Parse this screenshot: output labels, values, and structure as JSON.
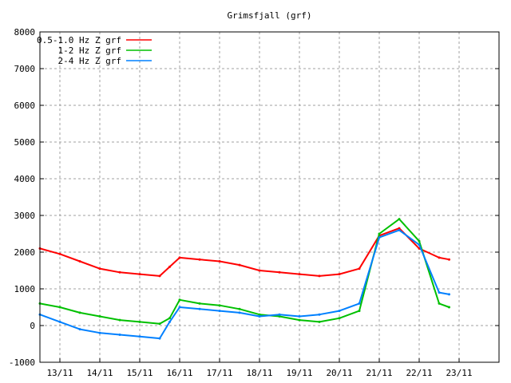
{
  "chart_data": {
    "type": "line",
    "title": "Grimsfjall (grf)",
    "xlabel": "",
    "ylabel": "",
    "ylim": [
      -1000,
      8000
    ],
    "yticks": [
      -1000,
      0,
      1000,
      2000,
      3000,
      4000,
      5000,
      6000,
      7000,
      8000
    ],
    "xlim": [
      "12/11 12:00",
      "24/11 00:00"
    ],
    "xticks": [
      "13/11",
      "14/11",
      "15/11",
      "16/11",
      "17/11",
      "18/11",
      "19/11",
      "20/11",
      "21/11",
      "22/11",
      "23/11"
    ],
    "grid": true,
    "legend_position": "top-left",
    "series": [
      {
        "name": "0.5-1.0 Hz Z grf",
        "color": "#ff0000",
        "x": [
          "12/11 12:00",
          "13/11 00:00",
          "13/11 12:00",
          "14/11 00:00",
          "14/11 12:00",
          "15/11 00:00",
          "15/11 12:00",
          "15/11 18:00",
          "16/11 00:00",
          "16/11 12:00",
          "17/11 00:00",
          "17/11 12:00",
          "18/11 00:00",
          "18/11 12:00",
          "19/11 00:00",
          "19/11 12:00",
          "20/11 00:00",
          "20/11 12:00",
          "21/11 00:00",
          "21/11 12:00",
          "22/11 00:00",
          "22/11 12:00",
          "22/11 18:00"
        ],
        "values": [
          2100,
          1950,
          1750,
          1550,
          1450,
          1400,
          1350,
          1600,
          1850,
          1800,
          1750,
          1650,
          1500,
          1450,
          1400,
          1350,
          1400,
          1550,
          2450,
          2650,
          2100,
          1850,
          1800
        ]
      },
      {
        "name": "1-2 Hz Z grf",
        "color": "#00c000",
        "x": [
          "12/11 12:00",
          "13/11 00:00",
          "13/11 12:00",
          "14/11 00:00",
          "14/11 12:00",
          "15/11 00:00",
          "15/11 12:00",
          "15/11 18:00",
          "16/11 00:00",
          "16/11 12:00",
          "17/11 00:00",
          "17/11 12:00",
          "18/11 00:00",
          "18/11 12:00",
          "19/11 00:00",
          "19/11 12:00",
          "20/11 00:00",
          "20/11 12:00",
          "21/11 00:00",
          "21/11 12:00",
          "22/11 00:00",
          "22/11 12:00",
          "22/11 18:00"
        ],
        "values": [
          600,
          500,
          350,
          250,
          150,
          100,
          50,
          200,
          700,
          600,
          550,
          450,
          300,
          250,
          150,
          100,
          200,
          400,
          2500,
          2900,
          2300,
          600,
          500
        ]
      },
      {
        "name": "2-4 Hz Z grf",
        "color": "#0080ff",
        "x": [
          "12/11 12:00",
          "13/11 00:00",
          "13/11 12:00",
          "14/11 00:00",
          "14/11 12:00",
          "15/11 00:00",
          "15/11 12:00",
          "15/11 18:00",
          "16/11 00:00",
          "16/11 12:00",
          "17/11 00:00",
          "17/11 12:00",
          "18/11 00:00",
          "18/11 12:00",
          "19/11 00:00",
          "19/11 12:00",
          "20/11 00:00",
          "20/11 12:00",
          "21/11 00:00",
          "21/11 12:00",
          "22/11 00:00",
          "22/11 12:00",
          "22/11 18:00"
        ],
        "values": [
          300,
          100,
          -100,
          -200,
          -250,
          -300,
          -350,
          100,
          500,
          450,
          400,
          350,
          250,
          300,
          250,
          300,
          400,
          600,
          2400,
          2600,
          2200,
          900,
          850
        ]
      }
    ]
  }
}
